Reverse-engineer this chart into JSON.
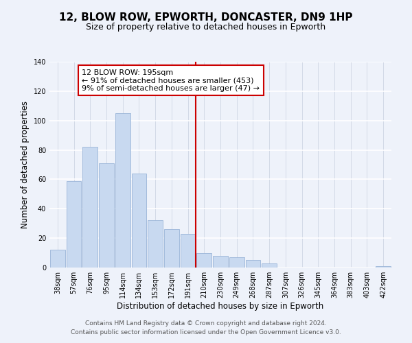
{
  "title": "12, BLOW ROW, EPWORTH, DONCASTER, DN9 1HP",
  "subtitle": "Size of property relative to detached houses in Epworth",
  "xlabel": "Distribution of detached houses by size in Epworth",
  "ylabel": "Number of detached properties",
  "bar_labels": [
    "38sqm",
    "57sqm",
    "76sqm",
    "95sqm",
    "114sqm",
    "134sqm",
    "153sqm",
    "172sqm",
    "191sqm",
    "210sqm",
    "230sqm",
    "249sqm",
    "268sqm",
    "287sqm",
    "307sqm",
    "326sqm",
    "345sqm",
    "364sqm",
    "383sqm",
    "403sqm",
    "422sqm"
  ],
  "bar_values": [
    12,
    59,
    82,
    71,
    105,
    64,
    32,
    26,
    23,
    10,
    8,
    7,
    5,
    3,
    0,
    0,
    0,
    0,
    0,
    0,
    1
  ],
  "bar_color": "#c8d9f0",
  "bar_edge_color": "#9ab5d8",
  "vline_x": 8.5,
  "vline_color": "#cc0000",
  "annotation_line1": "12 BLOW ROW: 195sqm",
  "annotation_line2": "← 91% of detached houses are smaller (453)",
  "annotation_line3": "9% of semi-detached houses are larger (47) →",
  "annotation_box_color": "#ffffff",
  "annotation_box_edge": "#cc0000",
  "ylim": [
    0,
    140
  ],
  "yticks": [
    0,
    20,
    40,
    60,
    80,
    100,
    120,
    140
  ],
  "footer_line1": "Contains HM Land Registry data © Crown copyright and database right 2024.",
  "footer_line2": "Contains public sector information licensed under the Open Government Licence v3.0.",
  "title_fontsize": 11,
  "subtitle_fontsize": 9,
  "axis_label_fontsize": 8.5,
  "tick_fontsize": 7,
  "footer_fontsize": 6.5,
  "annotation_fontsize": 8,
  "bg_color": "#eef2fa"
}
